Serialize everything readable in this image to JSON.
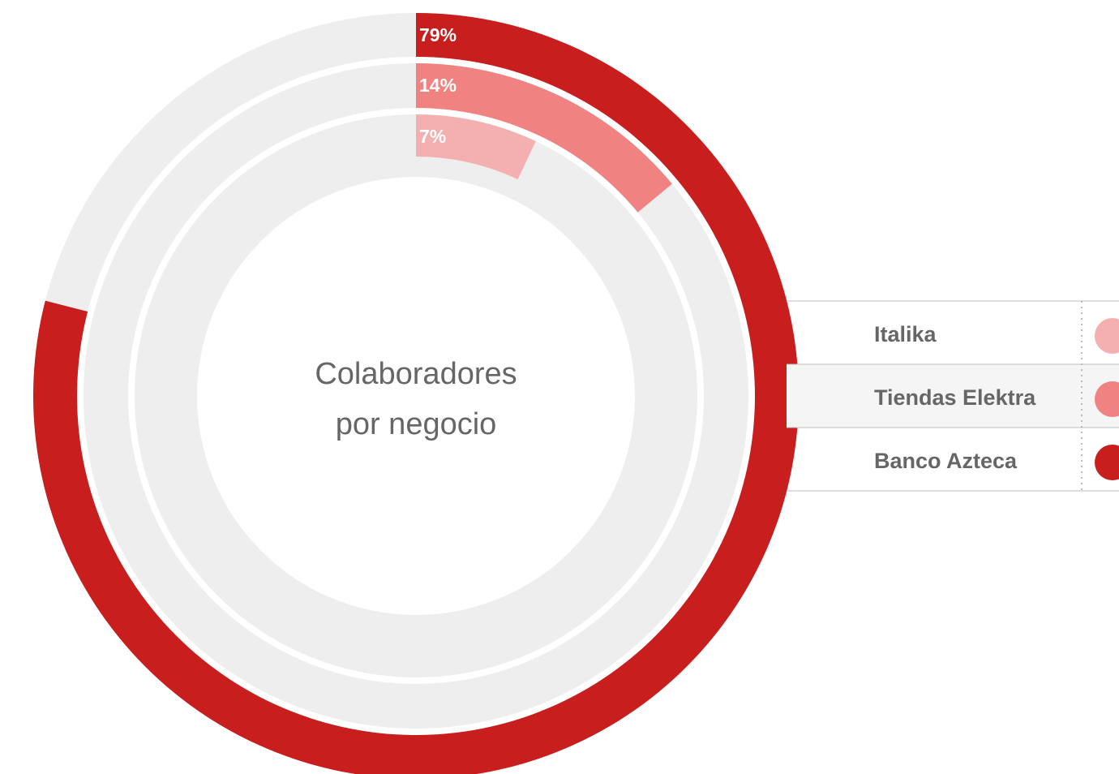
{
  "chart_data": {
    "type": "radial_bar",
    "title_lines": [
      "Colaboradores",
      "por negocio"
    ],
    "ylim": [
      0,
      100
    ],
    "series": [
      {
        "name": "Italika",
        "color": "#f4b0b0",
        "values": [
          7
        ],
        "value_labels": [
          "7%"
        ]
      },
      {
        "name": "Tiendas Elektra",
        "color": "#f08282",
        "values": [
          14
        ],
        "value_labels": [
          "14%"
        ]
      },
      {
        "name": "Banco Azteca",
        "color": "#c81e1e",
        "values": [
          79
        ],
        "value_labels": [
          "79%"
        ]
      }
    ],
    "legend": "right"
  }
}
